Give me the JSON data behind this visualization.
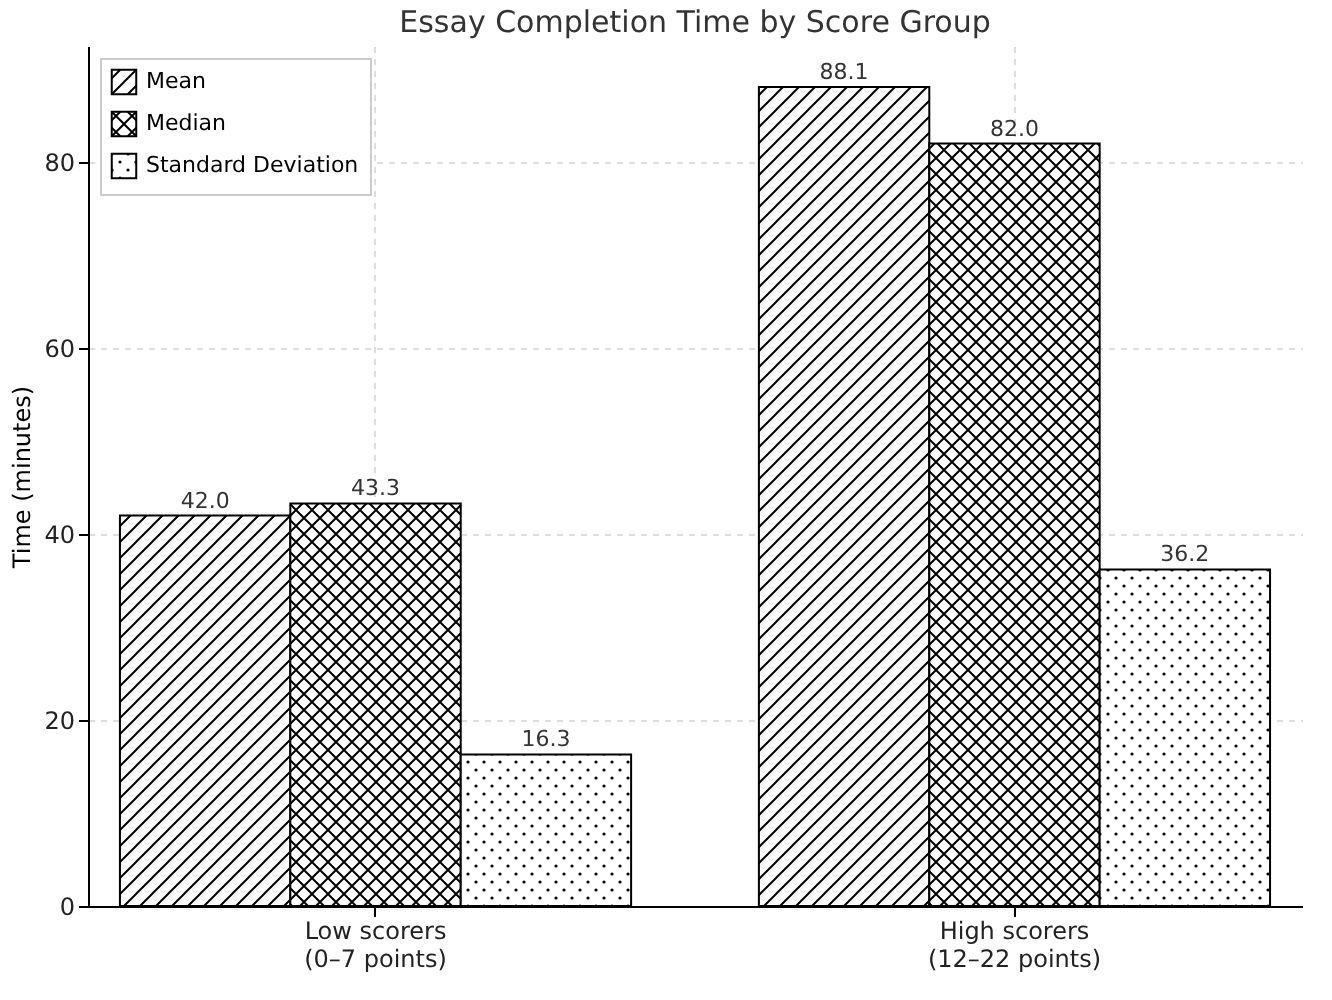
{
  "chart_data": {
    "type": "bar",
    "title": "Essay Completion Time by Score Group",
    "ylabel": "Time (minutes)",
    "categories": [
      "Low scorers\n(0–7 points)",
      "High scorers\n(12–22 points)"
    ],
    "series": [
      {
        "name": "Mean",
        "color": "#000000",
        "values": [
          42.0,
          88.1
        ],
        "value_labels": [
          "42.0",
          "88.1"
        ]
      },
      {
        "name": "Median",
        "color": "#000000",
        "values": [
          43.3,
          82.0
        ],
        "value_labels": [
          "43.3",
          "82.0"
        ]
      },
      {
        "name": "Standard Deviation",
        "color": "#000000",
        "values": [
          16.3,
          36.2
        ],
        "value_labels": [
          "16.3",
          "36.2"
        ]
      }
    ],
    "ylim": [
      0,
      92.5
    ],
    "yticks": [
      0,
      20,
      40,
      60,
      80
    ],
    "grid": true,
    "legend": "top left"
  }
}
